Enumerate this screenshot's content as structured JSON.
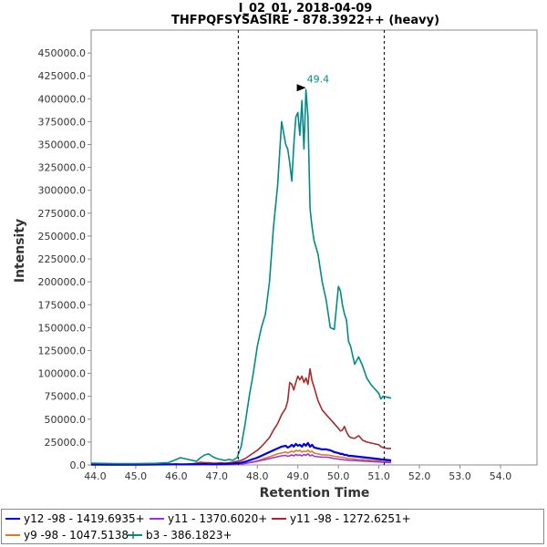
{
  "chart_data": {
    "type": "line",
    "title": "I_02_01, 2018-04-09",
    "subtitle": "THFPQFSYSASIRE - 878.3922++ (heavy)",
    "xlabel": "Retention Time",
    "ylabel": "Intensity",
    "xlim": [
      43.9,
      54.9
    ],
    "ylim": [
      0,
      475000
    ],
    "x_ticks": [
      "44.0",
      "45.0",
      "46.0",
      "47.0",
      "48.0",
      "49.0",
      "50.0",
      "51.0",
      "52.0",
      "53.0",
      "54.0"
    ],
    "y_ticks": [
      "0.0",
      "25000.0",
      "50000.0",
      "75000.0",
      "100000.0",
      "125000.0",
      "150000.0",
      "175000.0",
      "200000.0",
      "225000.0",
      "250000.0",
      "275000.0",
      "300000.0",
      "325000.0",
      "350000.0",
      "375000.0",
      "400000.0",
      "425000.0",
      "450000.0"
    ],
    "boundaries": [
      47.53,
      51.13
    ],
    "annotation": {
      "label": "49.4",
      "x": 49.2,
      "y": 412000
    },
    "x": [
      43.9,
      44.5,
      45.0,
      45.5,
      45.8,
      46.0,
      46.1,
      46.2,
      46.3,
      46.5,
      46.6,
      46.7,
      46.8,
      46.9,
      47.0,
      47.1,
      47.2,
      47.3,
      47.4,
      47.5,
      47.6,
      47.7,
      47.8,
      47.9,
      48.0,
      48.1,
      48.2,
      48.3,
      48.4,
      48.5,
      48.6,
      48.7,
      48.75,
      48.8,
      48.85,
      48.9,
      48.95,
      49.0,
      49.05,
      49.1,
      49.15,
      49.2,
      49.25,
      49.3,
      49.35,
      49.4,
      49.5,
      49.6,
      49.7,
      49.8,
      49.9,
      50.0,
      50.05,
      50.1,
      50.15,
      50.2,
      50.25,
      50.3,
      50.4,
      50.5,
      50.6,
      50.7,
      50.8,
      50.9,
      51.0,
      51.05,
      51.1,
      51.2,
      51.3
    ],
    "series": [
      {
        "name": "y12 -98 - 1419.6935+",
        "color": "#0000e8",
        "values": [
          500,
          300,
          400,
          500,
          600,
          800,
          700,
          600,
          800,
          700,
          900,
          1000,
          800,
          700,
          800,
          900,
          1000,
          1200,
          1500,
          2000,
          2500,
          3500,
          5000,
          6500,
          8000,
          10000,
          12000,
          14000,
          16000,
          18000,
          20000,
          21000,
          19000,
          20000,
          22000,
          20000,
          23000,
          21000,
          22000,
          20000,
          23000,
          21000,
          24000,
          20000,
          22000,
          19000,
          18000,
          17000,
          17000,
          16000,
          14000,
          13000,
          12000,
          12000,
          11000,
          11000,
          10000,
          10000,
          9500,
          9000,
          8500,
          8000,
          7500,
          7000,
          6500,
          6000,
          6000,
          5500,
          5000
        ]
      },
      {
        "name": "y11 - 1370.6020+",
        "color": "#9933dd",
        "values": [
          200,
          150,
          200,
          250,
          300,
          400,
          350,
          300,
          400,
          350,
          450,
          500,
          400,
          350,
          400,
          450,
          500,
          600,
          800,
          1000,
          1200,
          1700,
          2500,
          3200,
          4000,
          5000,
          6000,
          7000,
          8000,
          9000,
          10000,
          10500,
          9500,
          10000,
          11000,
          10000,
          11500,
          10500,
          11000,
          10000,
          11500,
          10500,
          12000,
          10000,
          11000,
          9500,
          9000,
          8500,
          8500,
          8000,
          7000,
          6500,
          6000,
          6000,
          5500,
          5500,
          5000,
          5000,
          4800,
          4500,
          4300,
          4000,
          3800,
          3500,
          3300,
          3000,
          3000,
          2800,
          2500
        ]
      },
      {
        "name": "y11 -98 - 1272.6251+",
        "color": "#a52a2a",
        "values": [
          300,
          200,
          300,
          400,
          500,
          700,
          600,
          500,
          700,
          2000,
          3000,
          2500,
          2500,
          2000,
          2000,
          2500,
          2000,
          2500,
          3000,
          4000,
          5000,
          7000,
          10000,
          13000,
          16000,
          20000,
          25000,
          30000,
          38000,
          45000,
          55000,
          62000,
          70000,
          90000,
          88000,
          82000,
          90000,
          97000,
          93000,
          97000,
          90000,
          95000,
          88000,
          105000,
          92000,
          85000,
          70000,
          60000,
          55000,
          50000,
          45000,
          40000,
          37000,
          38000,
          42000,
          36000,
          32000,
          30000,
          29000,
          32000,
          27000,
          25000,
          24000,
          23000,
          22000,
          20000,
          19000,
          18000,
          18000
        ]
      },
      {
        "name": "y9 -98 - 1047.5138+",
        "color": "#e0781e",
        "values": [
          200,
          150,
          200,
          250,
          300,
          400,
          350,
          300,
          400,
          500,
          700,
          600,
          600,
          500,
          500,
          600,
          500,
          600,
          800,
          1000,
          1300,
          1800,
          2500,
          3500,
          4500,
          6000,
          7500,
          9000,
          10500,
          12000,
          13000,
          14000,
          13000,
          14000,
          15000,
          14000,
          16000,
          15000,
          16000,
          14000,
          15000,
          14500,
          16000,
          14000,
          15000,
          13000,
          12000,
          11000,
          11000,
          10500,
          9500,
          9000,
          8500,
          8500,
          8000,
          7500,
          7000,
          7000,
          6500,
          6000,
          5800,
          5500,
          5000,
          4800,
          4500,
          4000,
          4000,
          3800,
          3500
        ]
      },
      {
        "name": "b3 - 386.1823+",
        "color": "#008b8b",
        "values": [
          2000,
          1500,
          1500,
          1800,
          2500,
          6000,
          8000,
          7000,
          6000,
          4000,
          8000,
          11000,
          12000,
          9000,
          7000,
          6000,
          5000,
          6000,
          5000,
          8000,
          20000,
          45000,
          75000,
          100000,
          130000,
          150000,
          165000,
          200000,
          260000,
          305000,
          375000,
          350000,
          345000,
          330000,
          310000,
          350000,
          380000,
          385000,
          360000,
          398000,
          345000,
          410000,
          380000,
          280000,
          260000,
          245000,
          230000,
          200000,
          180000,
          150000,
          148000,
          195000,
          190000,
          175000,
          165000,
          158000,
          135000,
          130000,
          110000,
          118000,
          108000,
          95000,
          88000,
          83000,
          78000,
          72000,
          75000,
          74000,
          73000
        ]
      }
    ]
  }
}
